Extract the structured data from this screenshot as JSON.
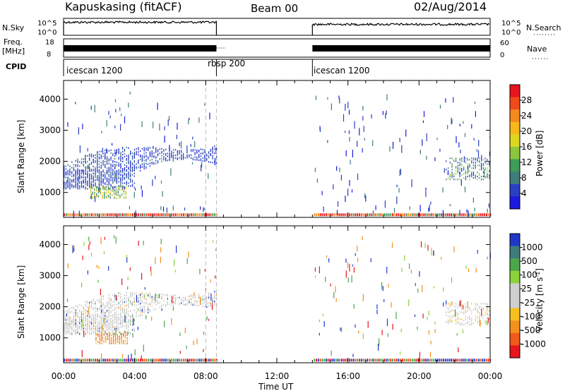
{
  "header": {
    "title": "Kapuskasing (fitACF)",
    "beam": "Beam 00",
    "date": "02/Aug/2014"
  },
  "strips": {
    "nsky_label": "N.Sky",
    "nsky_ticks": [
      "10^5",
      "10^0"
    ],
    "nsearch_label": "N.Search",
    "nsearch_ticks": [
      "10^5",
      "10^0"
    ],
    "freq_label": "Freq.",
    "freq_unit": "[MHz]",
    "freq_ticks": [
      "18",
      "8"
    ],
    "nave_label": "Nave",
    "nave_ticks": [
      "60",
      "0"
    ],
    "cpid_label": "CPID",
    "cpid_segments": [
      {
        "label": "icescan 1200",
        "start_h": 0,
        "end_h": 8.6
      },
      {
        "label": "rbsp 200",
        "start_h": 8.6,
        "end_h": 14
      },
      {
        "label": "icescan 1200",
        "start_h": 14,
        "end_h": 24
      }
    ]
  },
  "colorbars": {
    "power": {
      "label": "Power [dB]",
      "ticks": [
        "28",
        "24",
        "20",
        "16",
        "12",
        "8",
        "4"
      ],
      "colors": [
        "#e8141e",
        "#f04a1a",
        "#f58a1e",
        "#f7b81c",
        "#dcd820",
        "#8cc63f",
        "#3e9b5a",
        "#3f7d7a",
        "#2a3fc4",
        "#1a1ae0"
      ]
    },
    "velocity": {
      "label_main": "Velocity  [m s",
      "label_sup": "-1",
      "label_end": "]",
      "ticks": [
        "1000",
        "500",
        "100",
        "25",
        "-25",
        "-100",
        "-500",
        "-1000"
      ],
      "colors": [
        "#2038c8",
        "#3f7d7a",
        "#4aa84a",
        "#8cd23c",
        "#cfcfcf",
        "#cfcfcf",
        "#f7c01c",
        "#f5901e",
        "#f05a1a",
        "#e8141e"
      ]
    }
  },
  "axes": {
    "ylabel": "Slant Range [km]",
    "xlabel": "Time UT",
    "yticks": [
      "4000",
      "3000",
      "2000",
      "1000"
    ],
    "xticks": [
      "00:00",
      "04:00",
      "08:00",
      "12:00",
      "16:00",
      "20:00",
      "00:00"
    ]
  },
  "chart_data": [
    {
      "type": "heatmap",
      "title": "Kapuskasing (fitACF)",
      "xlabel": "Time UT",
      "ylabel": "Slant Range [km]",
      "xlim": [
        0,
        24
      ],
      "ylim": [
        200,
        4600
      ],
      "colorbar_label": "Power [dB]",
      "colorbar_ticks": [
        4,
        8,
        12,
        16,
        20,
        24,
        28
      ],
      "features": [
        {
          "desc": "echo band",
          "t_start": 0.0,
          "t_end": 8.6,
          "range_start": 1700,
          "range_end": 2300,
          "power_db": 6
        },
        {
          "desc": "strong echoes",
          "t_start": 1.5,
          "t_end": 3.5,
          "range_start": 800,
          "range_end": 1200,
          "power_db": 16
        },
        {
          "desc": "ground scatter band",
          "t_start": 0.0,
          "t_end": 24.0,
          "range_start": 200,
          "range_end": 320,
          "power_db": 24
        },
        {
          "desc": "late echoes",
          "t_start": 21.5,
          "t_end": 24.0,
          "range_start": 1400,
          "range_end": 2100,
          "power_db": 10
        }
      ],
      "data_gap": [
        8.6,
        14.0
      ]
    },
    {
      "type": "heatmap",
      "xlabel": "Time UT",
      "ylabel": "Slant Range [km]",
      "xlim": [
        0,
        24
      ],
      "ylim": [
        200,
        4600
      ],
      "colorbar_label": "Velocity [m s-1]",
      "colorbar_ticks": [
        -1000,
        -500,
        -100,
        -25,
        25,
        100,
        500,
        1000
      ],
      "features": [
        {
          "desc": "low velocity band",
          "t_start": 0.0,
          "t_end": 8.6,
          "range_start": 1300,
          "range_end": 2300,
          "velocity": 0
        },
        {
          "desc": "receding flow",
          "t_start": 1.8,
          "t_end": 3.6,
          "range_start": 800,
          "range_end": 1200,
          "velocity": -200
        },
        {
          "desc": "ground scatter band",
          "t_start": 0.0,
          "t_end": 24.0,
          "range_start": 200,
          "range_end": 320,
          "velocity": 0
        },
        {
          "desc": "late echoes",
          "t_start": 21.5,
          "t_end": 24.0,
          "range_start": 1400,
          "range_end": 2100,
          "velocity": 0
        }
      ],
      "data_gap": [
        8.6,
        14.0
      ]
    }
  ]
}
